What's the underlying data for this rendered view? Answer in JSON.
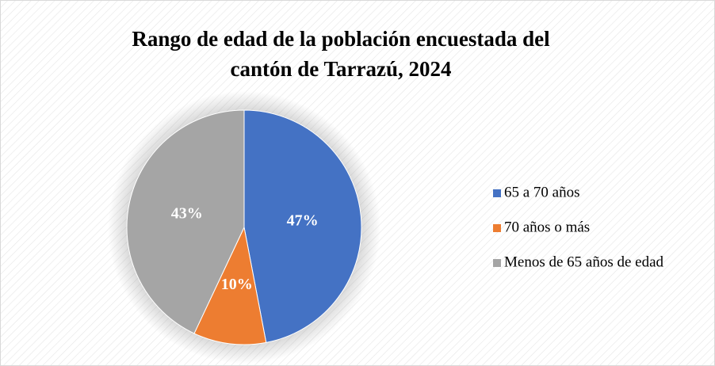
{
  "chart_data": {
    "type": "pie",
    "title": [
      "Rango de edad de la población encuestada del",
      "cantón de Tarrazú,  2024"
    ],
    "categories": [
      "65 a 70 años",
      "70 años o más",
      "Menos de 65 años de edad"
    ],
    "values": [
      47,
      10,
      43
    ],
    "value_labels": [
      "47%",
      "10%",
      "43%"
    ],
    "colors": [
      "#4472c4",
      "#ed7d31",
      "#a5a5a5"
    ],
    "legend": "right"
  }
}
